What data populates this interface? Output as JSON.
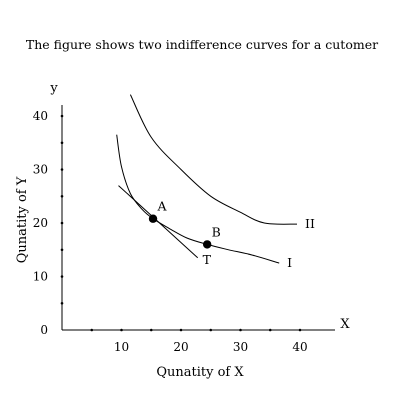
{
  "chart_data": {
    "type": "line",
    "title": "The figure shows two indifference curves for a cutomer",
    "xlabel": "Qunatity of X",
    "ylabel": "Qunatity of Y",
    "x_axis_letter": "X",
    "y_axis_letter": "y",
    "xlim": [
      0,
      45
    ],
    "ylim": [
      0,
      45
    ],
    "x_ticks": [
      10,
      20,
      30,
      40
    ],
    "y_ticks": [
      0,
      10,
      20,
      30,
      40
    ],
    "grid": false,
    "legend": "none",
    "series": [
      {
        "name": "I",
        "x": [
          9.2,
          10,
          11.5,
          13.5,
          15.3,
          18,
          21,
          24.4,
          28,
          32,
          36.5
        ],
        "y": [
          36.5,
          30.5,
          25.5,
          22.5,
          20.8,
          19,
          17.2,
          16,
          15,
          14,
          12.5
        ]
      },
      {
        "name": "II",
        "x": [
          11.5,
          15,
          20,
          25,
          30,
          34,
          39.5
        ],
        "y": [
          44,
          36,
          30,
          25,
          22,
          20,
          19.8
        ]
      },
      {
        "name": "T",
        "x": [
          9.5,
          22.8
        ],
        "y": [
          27,
          13.5
        ]
      }
    ],
    "points": [
      {
        "label": "A",
        "x": 15.3,
        "y": 20.8
      },
      {
        "label": "B",
        "x": 24.4,
        "y": 16
      }
    ],
    "colors": {
      "ink": "#000000",
      "background": "#ffffff"
    }
  }
}
